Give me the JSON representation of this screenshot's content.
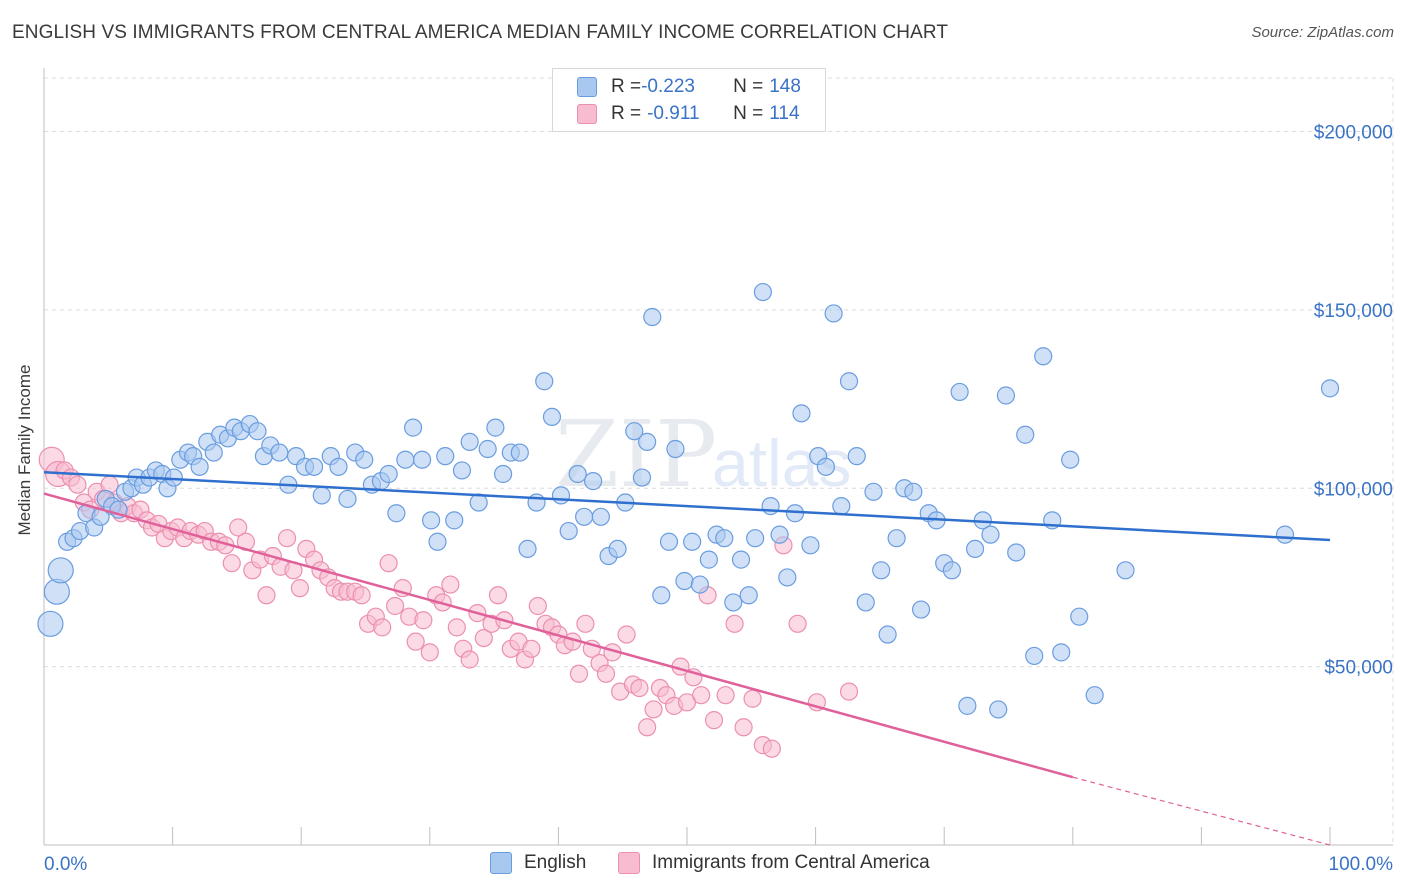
{
  "title": "ENGLISH VS IMMIGRANTS FROM CENTRAL AMERICA MEDIAN FAMILY INCOME CORRELATION CHART",
  "source": "Source: ZipAtlas.com",
  "watermark": "ZIPatlas",
  "colors": {
    "english_fill": "#a9c8f0",
    "english_stroke": "#6a9de0",
    "english_line": "#2f6fce",
    "central_fill": "#f7bcd0",
    "central_stroke": "#ec8fb0",
    "central_line": "#e0619a",
    "axis_text": "#3a73c6",
    "grid": "#dcdcdc"
  },
  "legend_top": {
    "rows": [
      {
        "r_label": "R = ",
        "r_value": "-0.223",
        "n_label": "N = ",
        "n_value": "148"
      },
      {
        "r_label": "R = ",
        "r_value": "-0.911",
        "n_label": "N = ",
        "n_value": "114"
      }
    ]
  },
  "legend_bottom": [
    "English",
    "Immigrants from Central America"
  ],
  "chart_data": {
    "type": "scatter",
    "title": "ENGLISH VS IMMIGRANTS FROM CENTRAL AMERICA MEDIAN FAMILY INCOME CORRELATION CHART",
    "ylabel": "Median Family Income",
    "xlim": [
      0,
      100
    ],
    "ylim": [
      0,
      215000
    ],
    "x_tick_labels": [
      "0.0%",
      "100.0%"
    ],
    "y_ticks": [
      50000,
      100000,
      150000,
      200000
    ],
    "y_tick_labels": [
      "$50,000",
      "$100,000",
      "$150,000",
      "$200,000"
    ],
    "grid": "horizontal dashed",
    "legend_placement": "top-center and bottom",
    "series": [
      {
        "name": "English",
        "R": -0.223,
        "N": 148,
        "trend": {
          "x": [
            0,
            100
          ],
          "y": [
            104500,
            85500
          ]
        },
        "points": [
          [
            0.5,
            62000
          ],
          [
            1.0,
            71000
          ],
          [
            1.3,
            77000
          ],
          [
            1.8,
            85000
          ],
          [
            2.3,
            86000
          ],
          [
            2.8,
            88000
          ],
          [
            3.3,
            93000
          ],
          [
            3.9,
            89000
          ],
          [
            4.4,
            92000
          ],
          [
            4.8,
            97000
          ],
          [
            5.3,
            95000
          ],
          [
            5.8,
            94000
          ],
          [
            6.3,
            99000
          ],
          [
            6.8,
            100000
          ],
          [
            7.2,
            103000
          ],
          [
            7.7,
            101000
          ],
          [
            8.2,
            103000
          ],
          [
            8.7,
            105000
          ],
          [
            9.2,
            104000
          ],
          [
            9.6,
            100000
          ],
          [
            10.1,
            103000
          ],
          [
            10.6,
            108000
          ],
          [
            11.2,
            110000
          ],
          [
            11.6,
            109000
          ],
          [
            12.1,
            106000
          ],
          [
            12.7,
            113000
          ],
          [
            13.2,
            110000
          ],
          [
            13.7,
            115000
          ],
          [
            14.3,
            114000
          ],
          [
            14.8,
            117000
          ],
          [
            15.3,
            116000
          ],
          [
            16.0,
            118000
          ],
          [
            16.6,
            116000
          ],
          [
            17.1,
            109000
          ],
          [
            17.6,
            112000
          ],
          [
            18.3,
            110000
          ],
          [
            19.0,
            101000
          ],
          [
            19.6,
            109000
          ],
          [
            20.3,
            106000
          ],
          [
            21.0,
            106000
          ],
          [
            21.6,
            98000
          ],
          [
            22.3,
            109000
          ],
          [
            22.9,
            106000
          ],
          [
            23.6,
            97000
          ],
          [
            24.2,
            110000
          ],
          [
            24.9,
            108000
          ],
          [
            25.5,
            101000
          ],
          [
            26.2,
            102000
          ],
          [
            26.8,
            104000
          ],
          [
            27.4,
            93000
          ],
          [
            28.1,
            108000
          ],
          [
            28.7,
            117000
          ],
          [
            29.4,
            108000
          ],
          [
            30.1,
            91000
          ],
          [
            30.6,
            85000
          ],
          [
            31.2,
            109000
          ],
          [
            31.9,
            91000
          ],
          [
            32.5,
            105000
          ],
          [
            33.1,
            113000
          ],
          [
            33.8,
            96000
          ],
          [
            34.5,
            111000
          ],
          [
            35.1,
            117000
          ],
          [
            35.7,
            104000
          ],
          [
            36.3,
            110000
          ],
          [
            37.0,
            110000
          ],
          [
            37.6,
            83000
          ],
          [
            38.3,
            96000
          ],
          [
            38.9,
            130000
          ],
          [
            39.5,
            120000
          ],
          [
            40.2,
            98000
          ],
          [
            40.8,
            88000
          ],
          [
            41.5,
            104000
          ],
          [
            42.0,
            92000
          ],
          [
            42.7,
            102000
          ],
          [
            43.3,
            92000
          ],
          [
            43.9,
            81000
          ],
          [
            44.6,
            83000
          ],
          [
            45.2,
            96000
          ],
          [
            45.9,
            116000
          ],
          [
            46.5,
            103000
          ],
          [
            46.9,
            113000
          ],
          [
            47.3,
            148000
          ],
          [
            48.0,
            70000
          ],
          [
            48.6,
            85000
          ],
          [
            49.1,
            111000
          ],
          [
            49.8,
            74000
          ],
          [
            50.4,
            85000
          ],
          [
            51.0,
            73000
          ],
          [
            51.7,
            80000
          ],
          [
            52.3,
            87000
          ],
          [
            52.9,
            86000
          ],
          [
            53.6,
            68000
          ],
          [
            54.2,
            80000
          ],
          [
            54.8,
            70000
          ],
          [
            55.3,
            86000
          ],
          [
            55.9,
            155000
          ],
          [
            56.5,
            95000
          ],
          [
            57.2,
            87000
          ],
          [
            57.8,
            75000
          ],
          [
            58.4,
            93000
          ],
          [
            58.9,
            121000
          ],
          [
            59.6,
            84000
          ],
          [
            60.2,
            109000
          ],
          [
            60.8,
            106000
          ],
          [
            61.4,
            149000
          ],
          [
            62.0,
            95000
          ],
          [
            62.6,
            130000
          ],
          [
            63.2,
            109000
          ],
          [
            63.9,
            68000
          ],
          [
            64.5,
            99000
          ],
          [
            65.1,
            77000
          ],
          [
            65.6,
            59000
          ],
          [
            66.3,
            86000
          ],
          [
            66.9,
            100000
          ],
          [
            67.6,
            99000
          ],
          [
            68.2,
            66000
          ],
          [
            68.8,
            93000
          ],
          [
            69.4,
            91000
          ],
          [
            70.0,
            79000
          ],
          [
            70.6,
            77000
          ],
          [
            71.2,
            127000
          ],
          [
            71.8,
            39000
          ],
          [
            72.4,
            83000
          ],
          [
            73.0,
            91000
          ],
          [
            73.6,
            87000
          ],
          [
            74.2,
            38000
          ],
          [
            74.8,
            126000
          ],
          [
            75.6,
            82000
          ],
          [
            76.3,
            115000
          ],
          [
            77.0,
            53000
          ],
          [
            77.7,
            137000
          ],
          [
            78.4,
            91000
          ],
          [
            79.1,
            54000
          ],
          [
            79.8,
            108000
          ],
          [
            80.5,
            64000
          ],
          [
            81.7,
            42000
          ],
          [
            84.1,
            77000
          ],
          [
            96.5,
            87000
          ],
          [
            100.0,
            128000
          ]
        ]
      },
      {
        "name": "Immigrants from Central America",
        "R": -0.911,
        "N": 114,
        "trend": {
          "x": [
            0,
            80
          ],
          "y": [
            98500,
            19000
          ]
        },
        "trend_dashed": {
          "x": [
            80,
            100
          ],
          "y": [
            19000,
            0
          ]
        },
        "points": [
          [
            0.6,
            108000
          ],
          [
            1.1,
            104000
          ],
          [
            1.6,
            105000
          ],
          [
            2.1,
            103000
          ],
          [
            2.6,
            101000
          ],
          [
            3.1,
            96000
          ],
          [
            3.6,
            94000
          ],
          [
            4.1,
            99000
          ],
          [
            4.6,
            97000
          ],
          [
            5.1,
            101000
          ],
          [
            5.5,
            96000
          ],
          [
            6.0,
            93000
          ],
          [
            6.5,
            95000
          ],
          [
            7.0,
            93000
          ],
          [
            7.5,
            94000
          ],
          [
            8.0,
            91000
          ],
          [
            8.4,
            89000
          ],
          [
            8.9,
            90000
          ],
          [
            9.4,
            86000
          ],
          [
            9.9,
            88000
          ],
          [
            10.4,
            89000
          ],
          [
            10.9,
            86000
          ],
          [
            11.4,
            88000
          ],
          [
            12.0,
            87000
          ],
          [
            12.5,
            88000
          ],
          [
            13.0,
            85000
          ],
          [
            13.6,
            85000
          ],
          [
            14.1,
            84000
          ],
          [
            14.6,
            79000
          ],
          [
            15.1,
            89000
          ],
          [
            15.7,
            85000
          ],
          [
            16.2,
            77000
          ],
          [
            16.8,
            80000
          ],
          [
            17.3,
            70000
          ],
          [
            17.8,
            81000
          ],
          [
            18.4,
            78000
          ],
          [
            18.9,
            86000
          ],
          [
            19.4,
            77000
          ],
          [
            19.9,
            72000
          ],
          [
            20.4,
            83000
          ],
          [
            21.0,
            80000
          ],
          [
            21.5,
            77000
          ],
          [
            22.1,
            75000
          ],
          [
            22.6,
            72000
          ],
          [
            23.1,
            71000
          ],
          [
            23.6,
            71000
          ],
          [
            24.2,
            71000
          ],
          [
            24.7,
            70000
          ],
          [
            25.2,
            62000
          ],
          [
            25.8,
            64000
          ],
          [
            26.3,
            61000
          ],
          [
            26.8,
            79000
          ],
          [
            27.3,
            67000
          ],
          [
            27.9,
            72000
          ],
          [
            28.4,
            64000
          ],
          [
            28.9,
            57000
          ],
          [
            29.5,
            63000
          ],
          [
            30.0,
            54000
          ],
          [
            30.5,
            70000
          ],
          [
            31.0,
            68000
          ],
          [
            31.6,
            73000
          ],
          [
            32.1,
            61000
          ],
          [
            32.6,
            55000
          ],
          [
            33.1,
            52000
          ],
          [
            33.7,
            65000
          ],
          [
            34.2,
            58000
          ],
          [
            34.8,
            62000
          ],
          [
            35.3,
            70000
          ],
          [
            35.8,
            63000
          ],
          [
            36.3,
            55000
          ],
          [
            36.9,
            57000
          ],
          [
            37.4,
            52000
          ],
          [
            37.9,
            55000
          ],
          [
            38.4,
            67000
          ],
          [
            39.0,
            62000
          ],
          [
            39.5,
            61000
          ],
          [
            40.0,
            59000
          ],
          [
            40.5,
            56000
          ],
          [
            41.1,
            57000
          ],
          [
            41.6,
            48000
          ],
          [
            42.1,
            62000
          ],
          [
            42.6,
            55000
          ],
          [
            43.2,
            51000
          ],
          [
            43.7,
            48000
          ],
          [
            44.2,
            54000
          ],
          [
            44.8,
            43000
          ],
          [
            45.3,
            59000
          ],
          [
            45.8,
            45000
          ],
          [
            46.3,
            44000
          ],
          [
            46.9,
            33000
          ],
          [
            47.4,
            38000
          ],
          [
            47.9,
            44000
          ],
          [
            48.4,
            42000
          ],
          [
            49.0,
            39000
          ],
          [
            49.5,
            50000
          ],
          [
            50.0,
            40000
          ],
          [
            50.5,
            47000
          ],
          [
            51.1,
            42000
          ],
          [
            51.6,
            70000
          ],
          [
            52.1,
            35000
          ],
          [
            53.0,
            42000
          ],
          [
            53.7,
            62000
          ],
          [
            54.4,
            33000
          ],
          [
            55.1,
            41000
          ],
          [
            55.9,
            28000
          ],
          [
            56.6,
            27000
          ],
          [
            57.5,
            84000
          ],
          [
            58.6,
            62000
          ],
          [
            60.1,
            40000
          ],
          [
            62.6,
            43000
          ]
        ]
      }
    ]
  }
}
